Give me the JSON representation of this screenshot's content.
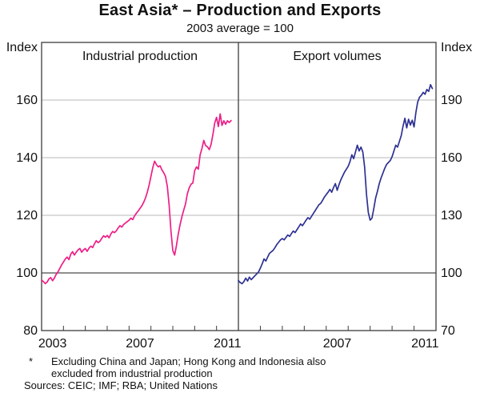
{
  "chart_data": {
    "type": "line",
    "title": "East Asia* – Production and Exports",
    "subtitle": "2003 average = 100",
    "frequency": "monthly",
    "x_start_year": 2003,
    "xrange": [
      2003,
      2012
    ],
    "x_tick_years": [
      2004,
      2005,
      2006,
      2007,
      2008,
      2009,
      2010,
      2011
    ],
    "reference_line": 100,
    "grid": "horizontal",
    "footnote_symbol": "*",
    "footnote": "Excluding China and Japan; Hong Kong and Indonesia also excluded from industrial production",
    "sources": "Sources: CEIC; IMF; RBA; United Nations",
    "panels": [
      {
        "label": "Industrial production",
        "series_name": "production-line",
        "axis_side": "left",
        "axis_label": "Index",
        "ylim": [
          80,
          180
        ],
        "yticks": [
          80,
          100,
          120,
          140,
          160
        ],
        "xticks_labeled": [
          2003,
          2007,
          2011
        ],
        "color": "#ed1e87",
        "values": [
          97.5,
          97.0,
          96.3,
          96.8,
          97.9,
          98.4,
          97.3,
          98.2,
          99.5,
          100.4,
          101.6,
          102.8,
          103.8,
          104.8,
          105.5,
          104.6,
          106.5,
          107.4,
          106.2,
          107.2,
          108.0,
          108.5,
          107.2,
          108.0,
          108.5,
          107.5,
          108.6,
          109.3,
          108.8,
          110.1,
          111.2,
          110.5,
          111.0,
          112.0,
          112.9,
          112.4,
          113.0,
          112.2,
          113.5,
          114.4,
          114.0,
          114.6,
          115.6,
          116.4,
          115.9,
          116.8,
          117.3,
          117.8,
          118.3,
          119.0,
          118.5,
          119.8,
          120.7,
          121.5,
          122.4,
          123.3,
          124.5,
          126.0,
          128.0,
          130.5,
          133.5,
          136.5,
          138.8,
          137.6,
          136.8,
          137.2,
          135.8,
          134.8,
          133.5,
          130.0,
          123.5,
          114.5,
          107.8,
          106.2,
          109.5,
          113.5,
          116.8,
          119.5,
          121.8,
          124.0,
          127.5,
          129.5,
          130.8,
          131.2,
          135.5,
          136.8,
          136.0,
          141.0,
          143.2,
          146.0,
          144.2,
          143.8,
          142.8,
          144.6,
          148.0,
          152.0,
          154.0,
          150.8,
          155.2,
          151.2,
          152.8,
          151.6,
          152.8,
          152.2,
          152.9
        ]
      },
      {
        "label": "Export volumes",
        "series_name": "exports-line",
        "axis_side": "right",
        "axis_label": "Index",
        "ylim": [
          70,
          220
        ],
        "yticks": [
          70,
          100,
          130,
          160,
          190
        ],
        "xticks_labeled": [
          2007,
          2011
        ],
        "color": "#2e3192",
        "values": [
          96.0,
          95.0,
          94.4,
          95.5,
          97.3,
          95.8,
          97.8,
          96.5,
          97.5,
          98.5,
          99.5,
          100.5,
          102.5,
          104.7,
          107.3,
          106.2,
          108.3,
          110.2,
          111.0,
          111.8,
          113.2,
          114.8,
          116.0,
          117.2,
          117.9,
          117.2,
          118.5,
          119.8,
          119.0,
          120.5,
          121.8,
          121.0,
          122.5,
          124.0,
          125.5,
          124.6,
          126.0,
          127.5,
          128.8,
          128.0,
          129.5,
          131.0,
          132.5,
          134.0,
          135.5,
          136.2,
          137.8,
          139.5,
          140.8,
          142.0,
          143.5,
          142.0,
          144.5,
          146.5,
          143.0,
          146.0,
          148.5,
          150.5,
          152.5,
          154.0,
          155.5,
          158.0,
          161.5,
          159.5,
          163.0,
          166.5,
          163.5,
          165.5,
          163.0,
          155.0,
          141.0,
          131.5,
          127.5,
          128.5,
          133.5,
          139.0,
          142.5,
          146.5,
          149.5,
          152.0,
          154.5,
          156.5,
          157.5,
          158.5,
          160.5,
          163.5,
          166.5,
          165.5,
          168.5,
          171.5,
          176.5,
          180.5,
          175.5,
          180.0,
          177.0,
          179.5,
          176.0,
          183.5,
          189.0,
          191.5,
          192.5,
          194.0,
          193.0,
          195.5,
          194.5,
          198.0,
          196.0
        ]
      }
    ]
  }
}
